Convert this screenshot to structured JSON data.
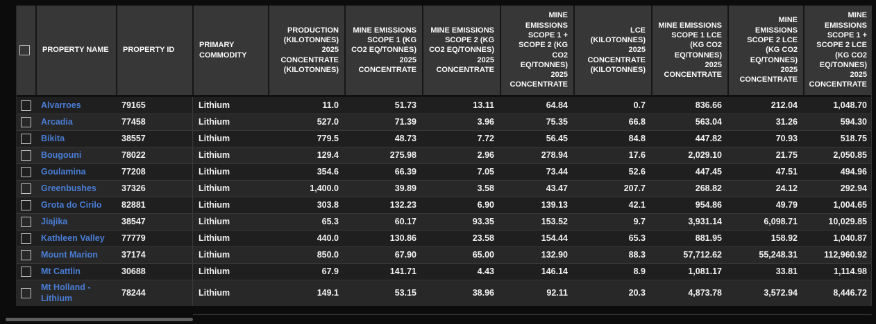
{
  "colors": {
    "page_bg": "#0c0c0c",
    "header_bg": "#373737",
    "row_odd_bg": "#1f1f1f",
    "row_even_bg": "#282828",
    "row_border": "#383838",
    "link_blue": "#4a7dd4",
    "text": "#f2f2f2"
  },
  "table": {
    "columns": [
      {
        "key": "select",
        "label": "",
        "align": "left",
        "type": "checkbox"
      },
      {
        "key": "property_name",
        "label": "PROPERTY NAME",
        "align": "left",
        "type": "link"
      },
      {
        "key": "property_id",
        "label": "PROPERTY ID",
        "align": "left",
        "type": "text"
      },
      {
        "key": "primary_commodity",
        "label": "PRIMARY COMMODITY",
        "align": "left",
        "type": "text"
      },
      {
        "key": "production_kt",
        "label": "PRODUCTION (KILOTONNES) 2025 CONCENTRATE (KILOTONNES)",
        "align": "right",
        "type": "number"
      },
      {
        "key": "scope1",
        "label": "MINE EMISSIONS SCOPE 1 (KG CO2 EQ/TONNES) 2025 CONCENTRATE",
        "align": "right",
        "type": "number"
      },
      {
        "key": "scope2",
        "label": "MINE EMISSIONS SCOPE 2 (KG CO2 EQ/TONNES) 2025 CONCENTRATE",
        "align": "right",
        "type": "number"
      },
      {
        "key": "scope1_2",
        "label": "MINE EMISSIONS SCOPE 1 + SCOPE 2 (KG CO2 EQ/TONNES) 2025 CONCENTRATE",
        "align": "right",
        "type": "number"
      },
      {
        "key": "lce_kt",
        "label": "LCE (KILOTONNES) 2025 CONCENTRATE (KILOTONNES)",
        "align": "right",
        "type": "number"
      },
      {
        "key": "scope1_lce",
        "label": "MINE EMISSIONS SCOPE 1 LCE (KG CO2 EQ/TONNES) 2025 CONCENTRATE",
        "align": "right",
        "type": "number"
      },
      {
        "key": "scope2_lce",
        "label": "MINE EMISSIONS SCOPE 2 LCE (KG CO2 EQ/TONNES) 2025 CONCENTRATE",
        "align": "right",
        "type": "number"
      },
      {
        "key": "scope1_2_lce",
        "label": "MINE EMISSIONS SCOPE 1 + SCOPE 2 LCE (KG CO2 EQ/TONNES) 2025 CONCENTRATE",
        "align": "right",
        "type": "number"
      }
    ],
    "rows": [
      {
        "property_name": "Alvarroes",
        "property_id": "79165",
        "primary_commodity": "Lithium",
        "production_kt": "11.0",
        "scope1": "51.73",
        "scope2": "13.11",
        "scope1_2": "64.84",
        "lce_kt": "0.7",
        "scope1_lce": "836.66",
        "scope2_lce": "212.04",
        "scope1_2_lce": "1,048.70"
      },
      {
        "property_name": "Arcadia",
        "property_id": "77458",
        "primary_commodity": "Lithium",
        "production_kt": "527.0",
        "scope1": "71.39",
        "scope2": "3.96",
        "scope1_2": "75.35",
        "lce_kt": "66.8",
        "scope1_lce": "563.04",
        "scope2_lce": "31.26",
        "scope1_2_lce": "594.30"
      },
      {
        "property_name": "Bikita",
        "property_id": "38557",
        "primary_commodity": "Lithium",
        "production_kt": "779.5",
        "scope1": "48.73",
        "scope2": "7.72",
        "scope1_2": "56.45",
        "lce_kt": "84.8",
        "scope1_lce": "447.82",
        "scope2_lce": "70.93",
        "scope1_2_lce": "518.75"
      },
      {
        "property_name": "Bougouni",
        "property_id": "78022",
        "primary_commodity": "Lithium",
        "production_kt": "129.4",
        "scope1": "275.98",
        "scope2": "2.96",
        "scope1_2": "278.94",
        "lce_kt": "17.6",
        "scope1_lce": "2,029.10",
        "scope2_lce": "21.75",
        "scope1_2_lce": "2,050.85"
      },
      {
        "property_name": "Goulamina",
        "property_id": "77208",
        "primary_commodity": "Lithium",
        "production_kt": "354.6",
        "scope1": "66.39",
        "scope2": "7.05",
        "scope1_2": "73.44",
        "lce_kt": "52.6",
        "scope1_lce": "447.45",
        "scope2_lce": "47.51",
        "scope1_2_lce": "494.96"
      },
      {
        "property_name": "Greenbushes",
        "property_id": "37326",
        "primary_commodity": "Lithium",
        "production_kt": "1,400.0",
        "scope1": "39.89",
        "scope2": "3.58",
        "scope1_2": "43.47",
        "lce_kt": "207.7",
        "scope1_lce": "268.82",
        "scope2_lce": "24.12",
        "scope1_2_lce": "292.94"
      },
      {
        "property_name": "Grota do Cirilo",
        "property_id": "82881",
        "primary_commodity": "Lithium",
        "production_kt": "303.8",
        "scope1": "132.23",
        "scope2": "6.90",
        "scope1_2": "139.13",
        "lce_kt": "42.1",
        "scope1_lce": "954.86",
        "scope2_lce": "49.79",
        "scope1_2_lce": "1,004.65"
      },
      {
        "property_name": "Jiajika",
        "property_id": "38547",
        "primary_commodity": "Lithium",
        "production_kt": "65.3",
        "scope1": "60.17",
        "scope2": "93.35",
        "scope1_2": "153.52",
        "lce_kt": "9.7",
        "scope1_lce": "3,931.14",
        "scope2_lce": "6,098.71",
        "scope1_2_lce": "10,029.85"
      },
      {
        "property_name": "Kathleen Valley",
        "property_id": "77779",
        "primary_commodity": "Lithium",
        "production_kt": "440.0",
        "scope1": "130.86",
        "scope2": "23.58",
        "scope1_2": "154.44",
        "lce_kt": "65.3",
        "scope1_lce": "881.95",
        "scope2_lce": "158.92",
        "scope1_2_lce": "1,040.87"
      },
      {
        "property_name": "Mount Marion",
        "property_id": "37174",
        "primary_commodity": "Lithium",
        "production_kt": "850.0",
        "scope1": "67.90",
        "scope2": "65.00",
        "scope1_2": "132.90",
        "lce_kt": "88.3",
        "scope1_lce": "57,712.62",
        "scope2_lce": "55,248.31",
        "scope1_2_lce": "112,960.92"
      },
      {
        "property_name": "Mt Cattlin",
        "property_id": "30688",
        "primary_commodity": "Lithium",
        "production_kt": "67.9",
        "scope1": "141.71",
        "scope2": "4.43",
        "scope1_2": "146.14",
        "lce_kt": "8.9",
        "scope1_lce": "1,081.17",
        "scope2_lce": "33.81",
        "scope1_2_lce": "1,114.98"
      },
      {
        "property_name": "Mt Holland - Lithium",
        "property_id": "78244",
        "primary_commodity": "Lithium",
        "production_kt": "149.1",
        "scope1": "53.15",
        "scope2": "38.96",
        "scope1_2": "92.11",
        "lce_kt": "20.3",
        "scope1_lce": "4,873.78",
        "scope2_lce": "3,572.94",
        "scope1_2_lce": "8,446.72"
      }
    ]
  }
}
